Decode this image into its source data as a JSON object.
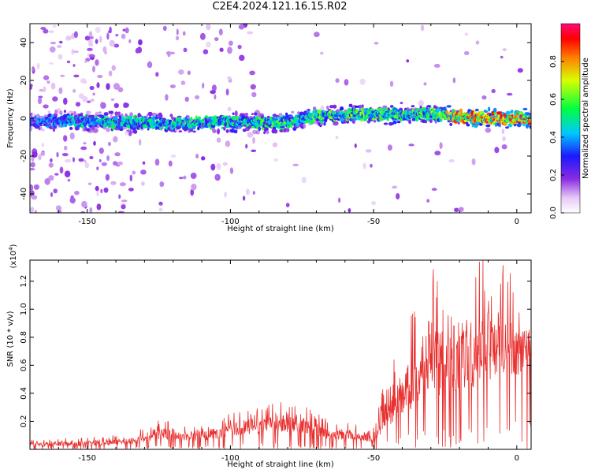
{
  "title": "C2E4.2024.121.16.15.R02",
  "chart_data": [
    {
      "type": "heatmap",
      "xlabel": "Height of straight line (km)",
      "ylabel": "Frequency (Hz)",
      "xlim": [
        -170,
        5
      ],
      "ylim": [
        -50,
        50
      ],
      "xticks": [
        -150,
        -100,
        -50,
        0
      ],
      "yticks": [
        -40,
        -20,
        0,
        20,
        40
      ],
      "colorbar": {
        "label": "Normalized spectral amplitude",
        "range": [
          0.0,
          1.0
        ],
        "ticks": [
          0.0,
          0.2,
          0.4,
          0.6,
          0.8
        ],
        "colormap": "white-purple-blue-cyan-green-yellow-red-magenta"
      },
      "ridge": [
        {
          "x": -168,
          "y": -2,
          "amp": 0.35
        },
        {
          "x": -155,
          "y": -1,
          "amp": 0.45
        },
        {
          "x": -140,
          "y": -2,
          "amp": 0.5
        },
        {
          "x": -120,
          "y": -3,
          "amp": 0.5
        },
        {
          "x": -100,
          "y": -2,
          "amp": 0.5
        },
        {
          "x": -85,
          "y": -3,
          "amp": 0.55
        },
        {
          "x": -70,
          "y": 1,
          "amp": 0.55
        },
        {
          "x": -55,
          "y": 2,
          "amp": 0.6
        },
        {
          "x": -45,
          "y": 2,
          "amp": 0.55
        },
        {
          "x": -30,
          "y": 2,
          "amp": 0.6
        },
        {
          "x": -20,
          "y": 1,
          "amp": 0.8
        },
        {
          "x": -10,
          "y": 0,
          "amp": 0.9
        },
        {
          "x": 0,
          "y": 0,
          "amp": 0.85
        }
      ]
    },
    {
      "type": "line",
      "xlabel": "Height of straight line (km)",
      "ylabel": "SNR (10 * v/v)",
      "scale_label": "(x10",
      "scale_exp": "4",
      "scale_close": ")",
      "xlim": [
        -170,
        5
      ],
      "ylim": [
        0,
        13500
      ],
      "xticks": [
        -150,
        -100,
        -50,
        0
      ],
      "yticks": [
        2000,
        4000,
        6000,
        8000,
        10000,
        12000
      ],
      "ytick_labels": [
        "0.2",
        "0.4",
        "0.6",
        "0.8",
        "1.0",
        "1.2"
      ],
      "color": "#e8302f",
      "envelope": [
        {
          "x": -170,
          "base": 200,
          "amp": 400
        },
        {
          "x": -150,
          "base": 250,
          "amp": 500
        },
        {
          "x": -135,
          "base": 350,
          "amp": 600
        },
        {
          "x": -125,
          "base": 700,
          "amp": 1200
        },
        {
          "x": -115,
          "base": 600,
          "amp": 900
        },
        {
          "x": -105,
          "base": 700,
          "amp": 1200
        },
        {
          "x": -95,
          "base": 1000,
          "amp": 1600
        },
        {
          "x": -85,
          "base": 1200,
          "amp": 1800
        },
        {
          "x": -75,
          "base": 1100,
          "amp": 1700
        },
        {
          "x": -65,
          "base": 700,
          "amp": 1100
        },
        {
          "x": -55,
          "base": 600,
          "amp": 1000
        },
        {
          "x": -50,
          "base": 500,
          "amp": 900
        },
        {
          "x": -47,
          "base": 1200,
          "amp": 2500
        },
        {
          "x": -40,
          "base": 2500,
          "amp": 4500
        },
        {
          "x": -35,
          "base": 3000,
          "amp": 6000
        },
        {
          "x": -30,
          "base": 4000,
          "amp": 8500
        },
        {
          "x": -25,
          "base": 3500,
          "amp": 6500
        },
        {
          "x": -20,
          "base": 4000,
          "amp": 6500
        },
        {
          "x": -14,
          "base": 4500,
          "amp": 7500
        },
        {
          "x": -8,
          "base": 5000,
          "amp": 7000
        },
        {
          "x": -3,
          "base": 5500,
          "amp": 6500
        },
        {
          "x": 0,
          "base": 5000,
          "amp": 5000
        },
        {
          "x": 5,
          "base": 6500,
          "amp": 3000
        }
      ]
    }
  ]
}
